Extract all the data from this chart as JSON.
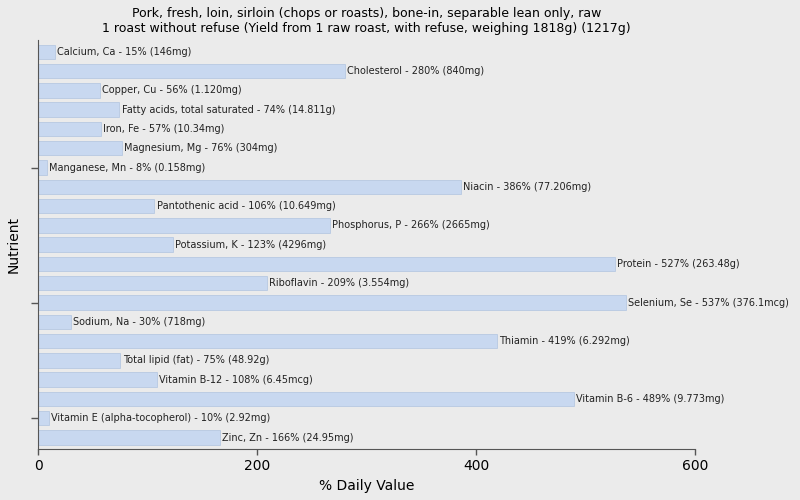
{
  "title": "Pork, fresh, loin, sirloin (chops or roasts), bone-in, separable lean only, raw\n1 roast without refuse (Yield from 1 raw roast, with refuse, weighing 1818g) (1217g)",
  "xlabel": "% Daily Value",
  "ylabel": "Nutrient",
  "xlim": [
    0,
    600
  ],
  "xticks": [
    0,
    200,
    400,
    600
  ],
  "background_color": "#ebebeb",
  "bar_color": "#c8d8f0",
  "bar_edge_color": "#b0c4e0",
  "nutrients": [
    "Calcium, Ca - 15% (146mg)",
    "Cholesterol - 280% (840mg)",
    "Copper, Cu - 56% (1.120mg)",
    "Fatty acids, total saturated - 74% (14.811g)",
    "Iron, Fe - 57% (10.34mg)",
    "Magnesium, Mg - 76% (304mg)",
    "Manganese, Mn - 8% (0.158mg)",
    "Niacin - 386% (77.206mg)",
    "Pantothenic acid - 106% (10.649mg)",
    "Phosphorus, P - 266% (2665mg)",
    "Potassium, K - 123% (4296mg)",
    "Protein - 527% (263.48g)",
    "Riboflavin - 209% (3.554mg)",
    "Selenium, Se - 537% (376.1mcg)",
    "Sodium, Na - 30% (718mg)",
    "Thiamin - 419% (6.292mg)",
    "Total lipid (fat) - 75% (48.92g)",
    "Vitamin B-12 - 108% (6.45mcg)",
    "Vitamin B-6 - 489% (9.773mg)",
    "Vitamin E (alpha-tocopherol) - 10% (2.92mg)",
    "Zinc, Zn - 166% (24.95mg)"
  ],
  "values": [
    15,
    280,
    56,
    74,
    57,
    76,
    8,
    386,
    106,
    266,
    123,
    527,
    209,
    537,
    30,
    419,
    75,
    108,
    489,
    10,
    166
  ],
  "label_fontsize": 7.0,
  "title_fontsize": 9.0,
  "bar_height": 0.75
}
